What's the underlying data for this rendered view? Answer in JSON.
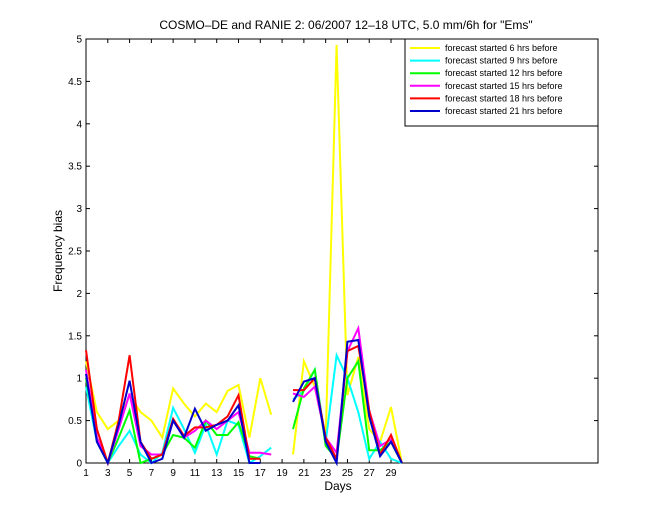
{
  "chart_data": {
    "type": "line",
    "title": "COSMO–DE and RANIE 2: 06/2007 12–18 UTC, 5.0 mm/6h for \"Ems\"",
    "xlabel": "Days",
    "ylabel": "Frequency bias",
    "xlim": [
      1,
      48
    ],
    "ylim": [
      0,
      5
    ],
    "x_ticks": [
      "1",
      "3",
      "5",
      "7",
      "9",
      "11",
      "13",
      "15",
      "17",
      "19",
      "21",
      "23",
      "25",
      "27",
      "29"
    ],
    "y_ticks": [
      "0",
      "0.5",
      "1",
      "1.5",
      "2",
      "2.5",
      "3",
      "3.5",
      "4",
      "4.5",
      "5"
    ],
    "grid": false,
    "legend_position": "top-right",
    "x": [
      1,
      2,
      3,
      4,
      5,
      6,
      7,
      8,
      9,
      10,
      11,
      12,
      13,
      14,
      15,
      16,
      17,
      18,
      19,
      20,
      21,
      22,
      23,
      24,
      25,
      26,
      27,
      28,
      29,
      30
    ],
    "series": [
      {
        "name": "forecast started 6 hrs before",
        "color": "#ffff00",
        "values": [
          1.2,
          0.6,
          0.4,
          0.5,
          0.8,
          0.6,
          0.5,
          0.3,
          0.88,
          0.7,
          0.55,
          0.7,
          0.6,
          0.85,
          0.92,
          0.3,
          1.0,
          0.57,
          null,
          0.1,
          1.2,
          0.9,
          0.3,
          4.93,
          0.8,
          1.25,
          0.4,
          0.25,
          0.66,
          0.0
        ]
      },
      {
        "name": "forecast started 9 hrs before",
        "color": "#00ffff",
        "values": [
          0.9,
          0.25,
          0.0,
          0.2,
          0.38,
          0.1,
          0.0,
          0.12,
          0.65,
          0.4,
          0.12,
          0.45,
          0.1,
          0.5,
          0.45,
          0.0,
          0.08,
          0.18,
          null,
          0.75,
          0.85,
          1.1,
          0.25,
          1.27,
          1.0,
          0.6,
          0.05,
          0.25,
          0.05,
          0.0
        ]
      },
      {
        "name": "forecast started 12 hrs before",
        "color": "#00ff00",
        "values": [
          1.0,
          0.3,
          0.0,
          0.3,
          0.62,
          0.0,
          0.05,
          0.1,
          0.33,
          0.3,
          0.18,
          0.5,
          0.33,
          0.33,
          0.48,
          0.08,
          0.05,
          null,
          null,
          0.4,
          0.88,
          1.1,
          0.2,
          0.05,
          1.0,
          1.2,
          0.15,
          0.15,
          0.25,
          0.0
        ]
      },
      {
        "name": "forecast started 15 hrs before",
        "color": "#ff00ff",
        "values": [
          1.1,
          0.3,
          0.0,
          0.4,
          0.82,
          0.2,
          0.1,
          0.1,
          0.5,
          0.3,
          0.38,
          0.5,
          0.4,
          0.5,
          0.6,
          0.12,
          0.12,
          0.1,
          null,
          0.82,
          0.78,
          0.9,
          0.3,
          0.12,
          1.32,
          1.59,
          0.62,
          0.2,
          0.28,
          0.0
        ]
      },
      {
        "name": "forecast started 18 hrs before",
        "color": "#ff0000",
        "values": [
          1.33,
          0.4,
          0.0,
          0.5,
          1.27,
          0.25,
          0.05,
          0.1,
          0.52,
          0.32,
          0.42,
          0.42,
          0.45,
          0.55,
          0.8,
          0.05,
          0.05,
          null,
          null,
          0.86,
          0.86,
          1.0,
          0.3,
          0.05,
          1.32,
          1.38,
          0.62,
          0.1,
          0.33,
          0.0
        ]
      },
      {
        "name": "forecast started 21 hrs before",
        "color": "#0000cc",
        "values": [
          1.05,
          0.25,
          0.0,
          0.45,
          0.97,
          0.25,
          0.0,
          0.05,
          0.5,
          0.3,
          0.64,
          0.38,
          0.45,
          0.5,
          0.68,
          0.0,
          0.0,
          null,
          null,
          0.72,
          0.96,
          1.0,
          0.25,
          0.0,
          1.43,
          1.45,
          0.55,
          0.08,
          0.25,
          0.0
        ]
      }
    ]
  }
}
